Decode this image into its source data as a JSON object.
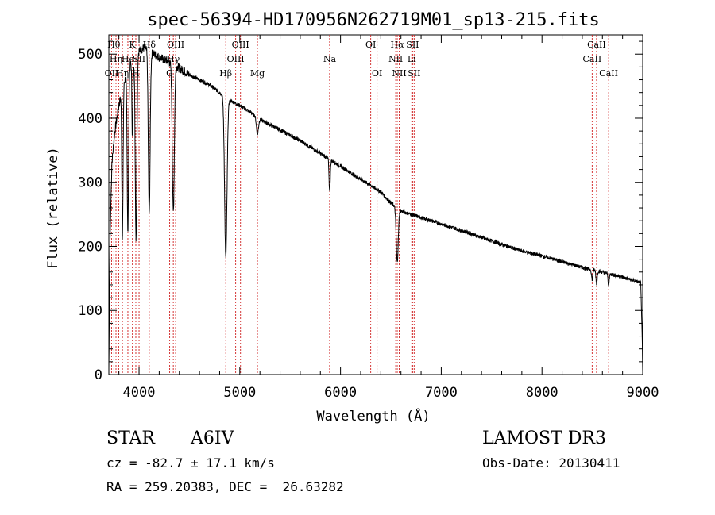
{
  "chart_data": {
    "type": "line",
    "title": "spec-56394-HD170956N262719M01_sp13-215.fits",
    "xlabel": "Wavelength (Å)",
    "ylabel": "Flux (relative)",
    "xlim": [
      3700,
      9000
    ],
    "ylim": [
      0,
      530
    ],
    "xticks": [
      4000,
      5000,
      6000,
      7000,
      8000,
      9000
    ],
    "yticks": [
      0,
      100,
      200,
      300,
      400,
      500
    ],
    "x_tick_labels": [
      "4000",
      "5000",
      "6000",
      "7000",
      "8000",
      "9000"
    ],
    "y_tick_labels": [
      "0",
      "100",
      "200",
      "300",
      "400",
      "500"
    ],
    "continuum": [
      [
        3700,
        10
      ],
      [
        3712,
        210
      ],
      [
        3730,
        330
      ],
      [
        3760,
        380
      ],
      [
        3800,
        420
      ],
      [
        3850,
        455
      ],
      [
        3900,
        480
      ],
      [
        3950,
        495
      ],
      [
        4000,
        505
      ],
      [
        4050,
        510
      ],
      [
        4100,
        505
      ],
      [
        4200,
        495
      ],
      [
        4300,
        488
      ],
      [
        4400,
        478
      ],
      [
        4500,
        468
      ],
      [
        4600,
        460
      ],
      [
        4700,
        452
      ],
      [
        4800,
        440
      ],
      [
        4900,
        428
      ],
      [
        5000,
        420
      ],
      [
        5100,
        410
      ],
      [
        5200,
        398
      ],
      [
        5400,
        382
      ],
      [
        5600,
        365
      ],
      [
        5800,
        345
      ],
      [
        6000,
        325
      ],
      [
        6200,
        305
      ],
      [
        6400,
        285
      ],
      [
        6500,
        268
      ],
      [
        6600,
        255
      ],
      [
        6800,
        245
      ],
      [
        7000,
        235
      ],
      [
        7200,
        225
      ],
      [
        7400,
        214
      ],
      [
        7600,
        203
      ],
      [
        7800,
        193
      ],
      [
        8000,
        185
      ],
      [
        8200,
        176
      ],
      [
        8400,
        167
      ],
      [
        8600,
        160
      ],
      [
        8800,
        152
      ],
      [
        8980,
        143
      ],
      [
        8995,
        60
      ],
      [
        9000,
        5
      ]
    ],
    "absorption_lines": [
      {
        "center": 3835,
        "depth": 230,
        "width": 6
      },
      {
        "center": 3889,
        "depth": 250,
        "width": 7
      },
      {
        "center": 3934,
        "depth": 120,
        "width": 5
      },
      {
        "center": 3970,
        "depth": 285,
        "width": 8
      },
      {
        "center": 4101,
        "depth": 255,
        "width": 9
      },
      {
        "center": 4340,
        "depth": 230,
        "width": 10
      },
      {
        "center": 4861,
        "depth": 250,
        "width": 12
      },
      {
        "center": 5175,
        "depth": 25,
        "width": 10
      },
      {
        "center": 5892,
        "depth": 50,
        "width": 6
      },
      {
        "center": 6563,
        "depth": 85,
        "width": 10
      },
      {
        "center": 8498,
        "depth": 15,
        "width": 6
      },
      {
        "center": 8542,
        "depth": 20,
        "width": 6
      },
      {
        "center": 8662,
        "depth": 18,
        "width": 6
      }
    ],
    "marker_lines": [
      {
        "x": 3727,
        "label": "OII",
        "row": 2
      },
      {
        "x": 3750,
        "label": "Hθ",
        "row": 0
      },
      {
        "x": 3771,
        "label": "Hη",
        "row": 1
      },
      {
        "x": 3798,
        "label": "",
        "row": 0
      },
      {
        "x": 3835,
        "label": "Hη",
        "row": 2
      },
      {
        "x": 3889,
        "label": "He",
        "row": 1
      },
      {
        "x": 3934,
        "label": "K",
        "row": 0
      },
      {
        "x": 3968,
        "label": "H",
        "row": 2
      },
      {
        "x": 4000,
        "label": "SII",
        "row": 1
      },
      {
        "x": 4101,
        "label": "Hδ",
        "row": 0
      },
      {
        "x": 4304,
        "label": "G",
        "row": 2
      },
      {
        "x": 4340,
        "label": "Hγ",
        "row": 1
      },
      {
        "x": 4363,
        "label": "OIII",
        "row": 0
      },
      {
        "x": 4861,
        "label": "Hβ",
        "row": 2
      },
      {
        "x": 4959,
        "label": "OIII",
        "row": 1
      },
      {
        "x": 5007,
        "label": "OIII",
        "row": 0
      },
      {
        "x": 5175,
        "label": "Mg",
        "row": 2
      },
      {
        "x": 5892,
        "label": "Na",
        "row": 1
      },
      {
        "x": 6300,
        "label": "OI",
        "row": 0
      },
      {
        "x": 6363,
        "label": "OI",
        "row": 2
      },
      {
        "x": 6548,
        "label": "NII",
        "row": 1
      },
      {
        "x": 6563,
        "label": "Hα",
        "row": 0
      },
      {
        "x": 6583,
        "label": "NII",
        "row": 2
      },
      {
        "x": 6707,
        "label": "Li",
        "row": 1
      },
      {
        "x": 6716,
        "label": "SII",
        "row": 0
      },
      {
        "x": 6731,
        "label": "SII",
        "row": 2
      },
      {
        "x": 8498,
        "label": "CaII",
        "row": 1
      },
      {
        "x": 8542,
        "label": "CaII",
        "row": 0
      },
      {
        "x": 8662,
        "label": "CaII",
        "row": 2
      }
    ]
  },
  "info": {
    "object_class": "STAR",
    "subclass": "A6IV",
    "survey": "LAMOST DR3",
    "redshift_line": "cz = -82.7 ± 17.1 km/s",
    "obs_date": "Obs-Date: 20130411",
    "coords": "RA = 259.20383, DEC =  26.63282"
  }
}
